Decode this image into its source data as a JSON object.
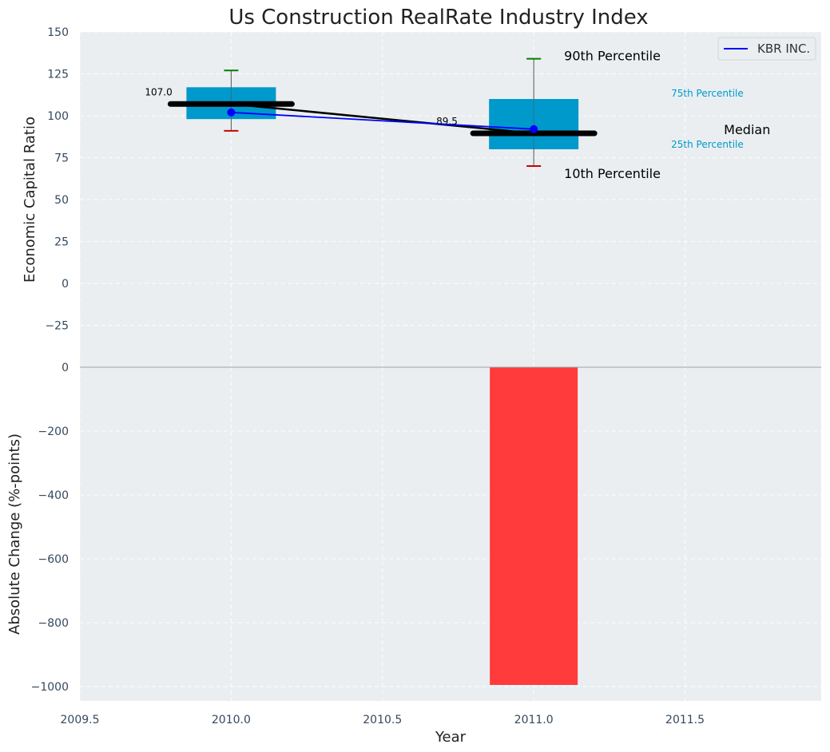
{
  "chart_data": {
    "title": "Us Construction RealRate Industry Index",
    "xlabel": "Year",
    "x_ticks": [
      "2009.5",
      "2010.0",
      "2010.5",
      "2011.0",
      "2011.5"
    ],
    "x_tick_values": [
      2009.5,
      2010.0,
      2010.5,
      2011.0,
      2011.5
    ],
    "xlim": [
      2009.5,
      2011.95
    ],
    "colors": {
      "box": "#0099cc",
      "series": "#0000ff",
      "median": "#000000",
      "p90_cap": "#008000",
      "p10_cap": "#cc0000",
      "bar": "#ff3b3b",
      "panel_bg": "#eaeef0",
      "percentile_text": "#0099cc"
    },
    "top_panel": {
      "type": "box_with_line",
      "ylabel": "Economic Capital Ratio",
      "ylim": [
        -50,
        150
      ],
      "y_ticks": [
        "150",
        "125",
        "100",
        "75",
        "50",
        "25",
        "0",
        "−25"
      ],
      "y_tick_values": [
        150,
        125,
        100,
        75,
        50,
        25,
        0,
        -25
      ],
      "boxes": [
        {
          "x": 2010.0,
          "p10": 91,
          "p25": 98,
          "median": 107.0,
          "p75": 117,
          "p90": 127,
          "median_label": "107.0"
        },
        {
          "x": 2011.0,
          "p10": 70,
          "p25": 80,
          "median": 89.5,
          "p75": 110,
          "p90": 134,
          "median_label": "89.5"
        }
      ],
      "series": [
        {
          "name": "KBR INC.",
          "x": [
            2010.0,
            2011.0
          ],
          "y": [
            102,
            92
          ]
        }
      ],
      "median_line": {
        "x": [
          2010.0,
          2011.0
        ],
        "y": [
          107.0,
          89.5
        ]
      },
      "legend": {
        "position": "top-right",
        "entries": [
          "KBR INC."
        ]
      },
      "annotations": {
        "p90": "90th Percentile",
        "p75": "75th Percentile",
        "median": "Median",
        "p25": "25th Percentile",
        "p10": "10th Percentile"
      }
    },
    "bottom_panel": {
      "type": "bar",
      "ylabel": "Absolute Change (%-points)",
      "ylim": [
        -1045,
        0
      ],
      "y_ticks": [
        "0",
        "−200",
        "−400",
        "−600",
        "−800",
        "−1000"
      ],
      "y_tick_values": [
        0,
        -200,
        -400,
        -600,
        -800,
        -1000
      ],
      "bars": [
        {
          "x": 2011.0,
          "value": -995
        }
      ]
    }
  }
}
